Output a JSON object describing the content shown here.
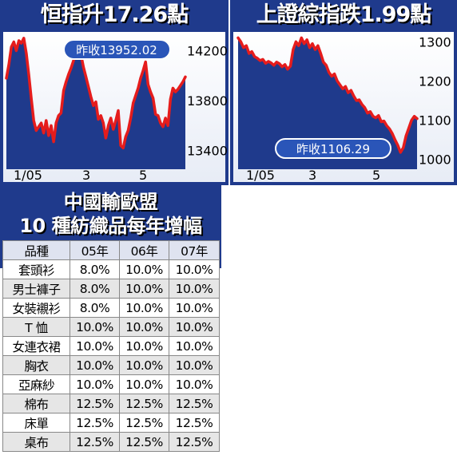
{
  "chart_data": [
    {
      "type": "line",
      "title": "恒指升17.26點",
      "prev_close_label": "昨收13952.02",
      "x_ticks": [
        "1/05",
        "3",
        "5"
      ],
      "y_ticks": [
        14200,
        13800,
        13400
      ],
      "ylim": [
        13250,
        14350
      ],
      "line_color": "#e51c1c",
      "values": [
        13980,
        14090,
        14230,
        14270,
        14200,
        14280,
        14260,
        14300,
        14180,
        14010,
        13820,
        13640,
        13560,
        13590,
        13620,
        13540,
        13640,
        13520,
        13600,
        13470,
        13620,
        13680,
        13700,
        13880,
        13950,
        14010,
        14060,
        14120,
        14230,
        14260,
        14170,
        14070,
        13990,
        13910,
        13830,
        13760,
        13790,
        13650,
        13680,
        13620,
        13500,
        13600,
        13660,
        13570,
        13640,
        13720,
        13440,
        13420,
        13510,
        13560,
        13660,
        13780,
        13840,
        13900,
        13980,
        14040,
        14110,
        13930,
        13870,
        13820,
        13690,
        13680,
        13620,
        13590,
        13660,
        13600,
        13810,
        13900,
        13870,
        13890,
        13920,
        13950,
        13990
      ]
    },
    {
      "type": "line",
      "title": "上證綜指跌1.99點",
      "prev_close_label": "昨收1106.29",
      "x_ticks": [
        "1/05",
        "3",
        "5"
      ],
      "y_ticks": [
        1300,
        1200,
        1100,
        1000
      ],
      "ylim": [
        975,
        1325
      ],
      "line_color": "#e51c1c",
      "values": [
        1310,
        1300,
        1285,
        1290,
        1270,
        1275,
        1262,
        1258,
        1252,
        1255,
        1245,
        1250,
        1246,
        1240,
        1248,
        1244,
        1236,
        1242,
        1230,
        1238,
        1280,
        1300,
        1290,
        1310,
        1295,
        1305,
        1285,
        1295,
        1280,
        1290,
        1270,
        1248,
        1240,
        1222,
        1212,
        1218,
        1200,
        1190,
        1180,
        1186,
        1170,
        1176,
        1162,
        1150,
        1152,
        1140,
        1132,
        1118,
        1122,
        1110,
        1106,
        1112,
        1096,
        1098,
        1086,
        1078,
        1066,
        1050,
        1036,
        1018,
        1030,
        1060,
        1080,
        1100,
        1110,
        1104
      ]
    }
  ],
  "table": {
    "title_line1": "中國輸歐盟",
    "title_line2": "10 種紡織品每年增幅",
    "headers": [
      "品種",
      "05年",
      "06年",
      "07年"
    ],
    "rows": [
      [
        "套頭衫",
        "8.0%",
        "10.0%",
        "10.0%"
      ],
      [
        "男士褲子",
        "8.0%",
        "10.0%",
        "10.0%"
      ],
      [
        "女裝襯衫",
        "8.0%",
        "10.0%",
        "10.0%"
      ],
      [
        "T 恤",
        "10.0%",
        "10.0%",
        "10.0%"
      ],
      [
        "女連衣裙",
        "10.0%",
        "10.0%",
        "10.0%"
      ],
      [
        "胸衣",
        "10.0%",
        "10.0%",
        "10.0%"
      ],
      [
        "亞麻紗",
        "10.0%",
        "10.0%",
        "10.0%"
      ],
      [
        "棉布",
        "12.5%",
        "12.5%",
        "12.5%"
      ],
      [
        "床單",
        "12.5%",
        "12.5%",
        "12.5%"
      ],
      [
        "桌布",
        "12.5%",
        "12.5%",
        "12.5%"
      ]
    ]
  }
}
